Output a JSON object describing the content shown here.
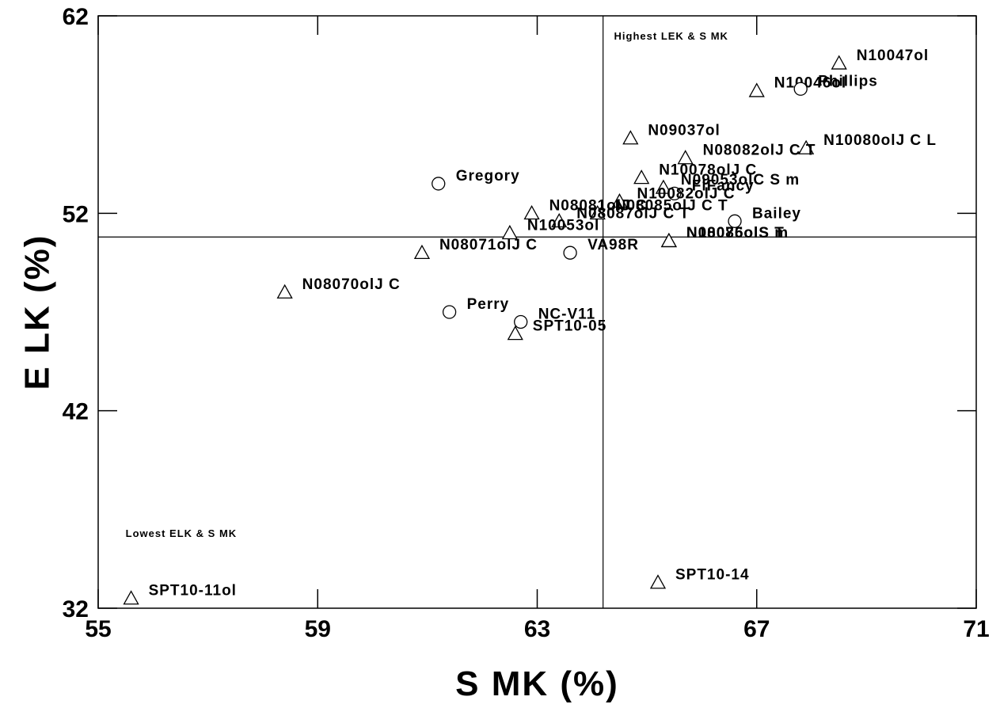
{
  "chart_data": {
    "type": "scatter",
    "xlabel": "S MK (%)",
    "ylabel": "E LK (%)",
    "xlim": [
      55,
      71
    ],
    "ylim": [
      32,
      62
    ],
    "xticks": [
      "55",
      "59",
      "63",
      "67",
      "71"
    ],
    "yticks": [
      "32",
      "42",
      "52",
      "62"
    ],
    "grid": false,
    "reference_lines": {
      "x": 64.2,
      "y": 50.8
    },
    "annotations": [
      {
        "text": "Highest LEK & S MK",
        "x": 64.4,
        "y": 60.8
      },
      {
        "text": "Lowest ELK & S MK",
        "x": 55.5,
        "y": 35.6
      }
    ],
    "marker_legend": {
      "triangle": "triangle-marker",
      "circle": "circle-marker"
    },
    "points": [
      {
        "label": "N10047ol",
        "x": 68.5,
        "y": 59.6,
        "marker": "triangle"
      },
      {
        "label": "N10046ol",
        "x": 67.0,
        "y": 58.2,
        "marker": "triangle"
      },
      {
        "label": "Phillips",
        "x": 67.8,
        "y": 58.3,
        "marker": "circle"
      },
      {
        "label": "N09037ol",
        "x": 64.7,
        "y": 55.8,
        "marker": "triangle"
      },
      {
        "label": "N10080olJ C L",
        "x": 67.9,
        "y": 55.3,
        "marker": "triangle"
      },
      {
        "label": "N08082olJ C T",
        "x": 65.7,
        "y": 54.8,
        "marker": "triangle"
      },
      {
        "label": "N10078olJ C",
        "x": 64.9,
        "y": 53.8,
        "marker": "triangle"
      },
      {
        "label": "N09053olC S m",
        "x": 65.3,
        "y": 53.3,
        "marker": "triangle"
      },
      {
        "label": "Gregory",
        "x": 61.2,
        "y": 53.5,
        "marker": "circle"
      },
      {
        "label": "FlFancy",
        "x": 65.5,
        "y": 53.0,
        "marker": "circle"
      },
      {
        "label": "N10082olJ C",
        "x": 64.5,
        "y": 52.6,
        "marker": "triangle"
      },
      {
        "label": "N08081olJ C",
        "x": 62.9,
        "y": 52.0,
        "marker": "triangle"
      },
      {
        "label": "N08085olJ C T",
        "x": 64.1,
        "y": 52.0,
        "marker": "triangle"
      },
      {
        "label": "N08087olJ C T",
        "x": 63.4,
        "y": 51.6,
        "marker": "triangle"
      },
      {
        "label": "Bailey",
        "x": 66.6,
        "y": 51.6,
        "marker": "circle"
      },
      {
        "label": "N10053ol",
        "x": 62.5,
        "y": 51.0,
        "marker": "triangle"
      },
      {
        "label": "N08086olS m",
        "x": 65.4,
        "y": 50.6,
        "marker": "triangle"
      },
      {
        "label": "N10075olS T",
        "x": 65.4,
        "y": 50.6,
        "marker": "triangle"
      },
      {
        "label": "N08071olJ C",
        "x": 60.9,
        "y": 50.0,
        "marker": "triangle"
      },
      {
        "label": "VA98R",
        "x": 63.6,
        "y": 50.0,
        "marker": "circle"
      },
      {
        "label": "N08070olJ C",
        "x": 58.4,
        "y": 48.0,
        "marker": "triangle"
      },
      {
        "label": "Perry",
        "x": 61.4,
        "y": 47.0,
        "marker": "circle"
      },
      {
        "label": "NC-V11",
        "x": 62.7,
        "y": 46.5,
        "marker": "circle"
      },
      {
        "label": "SPT10-05",
        "x": 62.6,
        "y": 45.9,
        "marker": "triangle"
      },
      {
        "label": "SPT10-14",
        "x": 65.2,
        "y": 33.3,
        "marker": "triangle"
      },
      {
        "label": "SPT10-11ol",
        "x": 55.6,
        "y": 32.5,
        "marker": "triangle"
      }
    ]
  }
}
